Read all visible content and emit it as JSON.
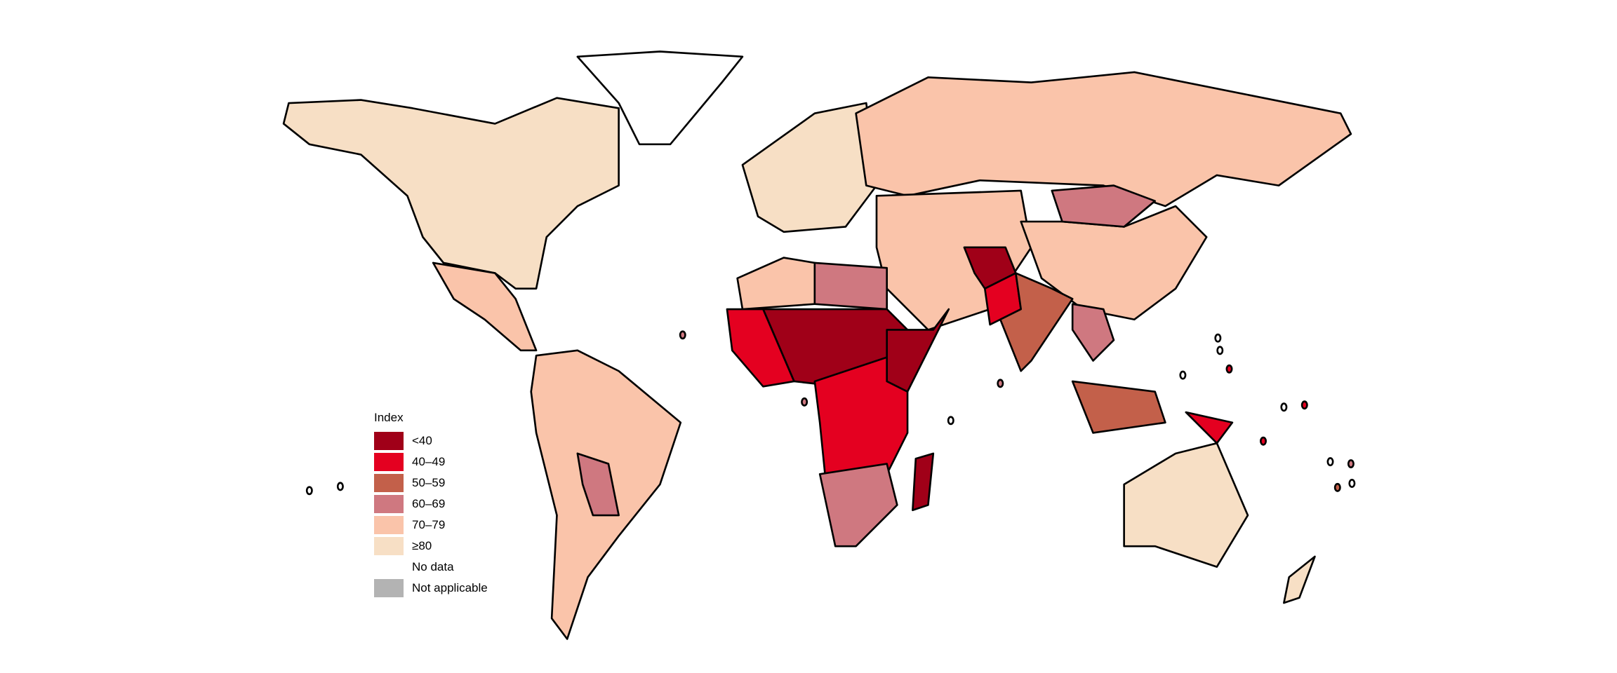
{
  "legend": {
    "title": "Index",
    "items": [
      {
        "label": "<40",
        "color": "#A00018",
        "key": "lt40"
      },
      {
        "label": "40–49",
        "color": "#E40020",
        "key": "c40"
      },
      {
        "label": "50–59",
        "color": "#C3604A",
        "key": "c50"
      },
      {
        "label": "60–69",
        "color": "#CF7880",
        "key": "c60"
      },
      {
        "label": "70–79",
        "color": "#FAC4AA",
        "key": "c70"
      },
      {
        "label": "≥80",
        "color": "#F7DFC5",
        "key": "ge80"
      },
      {
        "label": "No data",
        "color": "#FFFFFF",
        "key": "nodata"
      },
      {
        "label": "Not applicable",
        "color": "#B3B3B3",
        "key": "na"
      }
    ]
  }
}
